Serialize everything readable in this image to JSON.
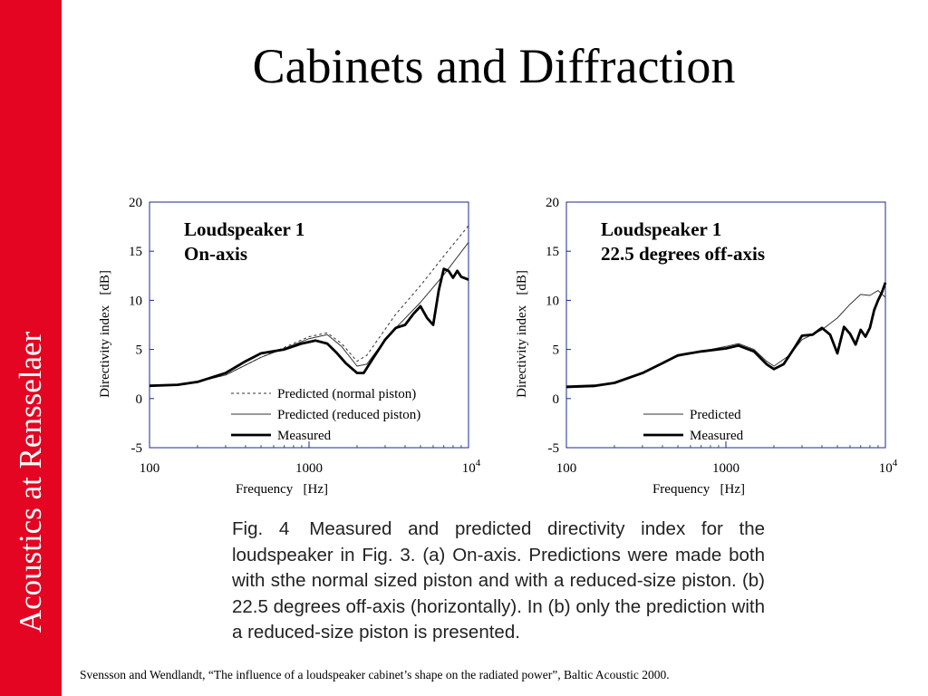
{
  "sidebar": {
    "text": "Acoustics at Rensselaer"
  },
  "slide": {
    "title": "Cabinets and Diffraction"
  },
  "caption": {
    "label": "Fig. 4",
    "text": "Measured and predicted directivity index for the loudspeaker in Fig. 3. (a) On-axis. Predictions were made both with sthe normal sized piston and with a reduced-size piston. (b) 22.5 degrees off-axis (horizontally). In (b) only the prediction with a reduced-size piston is presented."
  },
  "footer": {
    "citation": "Svensson and Wendlandt, “The influence of a loudspeaker cabinet’s shape on the radiated power”, Baltic Acoustic 2000."
  },
  "chart_data": [
    {
      "type": "line",
      "title": "Loudspeaker 1",
      "subtitle": "On-axis",
      "xlabel": "Frequency   [Hz]",
      "ylabel": "Directivity index   [dB]",
      "xscale": "log",
      "xlim": [
        100,
        10000
      ],
      "ylim": [
        -5,
        20
      ],
      "xticks": [
        {
          "label": "100",
          "value": 100
        },
        {
          "label": "1000",
          "value": 1000
        },
        {
          "label": "10",
          "sup": "4",
          "value": 10000
        }
      ],
      "yticks": [
        "-5",
        "0",
        "5",
        "10",
        "15",
        "20"
      ],
      "legend_position": "bottom-right",
      "series": [
        {
          "name": "Predicted (normal piston)",
          "style": "dashed",
          "x": [
            100,
            150,
            200,
            300,
            500,
            700,
            1000,
            1300,
            1600,
            2000,
            2300,
            2700,
            3500,
            5000,
            7000,
            10000
          ],
          "y": [
            1.3,
            1.4,
            1.7,
            2.4,
            4.2,
            5.2,
            6.3,
            6.7,
            5.6,
            3.8,
            4.4,
            6.0,
            8.6,
            11.5,
            14.5,
            17.6
          ]
        },
        {
          "name": "Predicted (reduced piston)",
          "style": "thin",
          "x": [
            100,
            150,
            200,
            300,
            500,
            700,
            1000,
            1300,
            1600,
            2000,
            2300,
            2700,
            3500,
            5000,
            7000,
            10000
          ],
          "y": [
            1.3,
            1.4,
            1.7,
            2.4,
            4.2,
            5.1,
            6.1,
            6.5,
            5.3,
            3.3,
            3.5,
            5.0,
            7.2,
            9.8,
            12.6,
            15.9
          ]
        },
        {
          "name": "Measured",
          "style": "thick",
          "x": [
            100,
            150,
            200,
            300,
            400,
            500,
            700,
            900,
            1100,
            1300,
            1500,
            1700,
            2000,
            2200,
            2500,
            3000,
            3500,
            4000,
            4500,
            5000,
            5500,
            6000,
            6500,
            7000,
            7500,
            8000,
            8500,
            9000,
            10000
          ],
          "y": [
            1.3,
            1.4,
            1.7,
            2.6,
            3.8,
            4.6,
            5.0,
            5.6,
            5.9,
            5.6,
            4.6,
            3.6,
            2.6,
            2.6,
            4.0,
            6.0,
            7.2,
            7.5,
            8.6,
            9.4,
            8.2,
            7.5,
            11.0,
            13.2,
            13.0,
            12.3,
            13.0,
            12.4,
            12.1
          ]
        }
      ]
    },
    {
      "type": "line",
      "title": "Loudspeaker 1",
      "subtitle": "22.5 degrees off-axis",
      "xlabel": "Frequency   [Hz]",
      "ylabel": "Directivity index   [dB]",
      "xscale": "log",
      "xlim": [
        100,
        10000
      ],
      "ylim": [
        -5,
        20
      ],
      "xticks": [
        {
          "label": "100",
          "value": 100
        },
        {
          "label": "1000",
          "value": 1000
        },
        {
          "label": "10",
          "sup": "4",
          "value": 10000
        }
      ],
      "yticks": [
        "-5",
        "0",
        "5",
        "10",
        "15",
        "20"
      ],
      "legend_position": "bottom-right",
      "series": [
        {
          "name": "Predicted",
          "style": "thin",
          "x": [
            100,
            150,
            200,
            300,
            400,
            500,
            700,
            1000,
            1200,
            1500,
            1800,
            2000,
            2500,
            3000,
            4000,
            5000,
            6000,
            7000,
            8000,
            9000,
            10000
          ],
          "y": [
            1.1,
            1.2,
            1.6,
            2.6,
            3.6,
            4.3,
            4.8,
            5.3,
            5.6,
            5.0,
            3.8,
            3.3,
            4.4,
            6.0,
            7.0,
            8.2,
            9.6,
            10.6,
            10.5,
            11.0,
            10.3
          ]
        },
        {
          "name": "Measured",
          "style": "thick",
          "x": [
            100,
            150,
            200,
            300,
            400,
            500,
            700,
            1000,
            1200,
            1500,
            1800,
            2000,
            2300,
            2700,
            3000,
            3500,
            4000,
            4500,
            5000,
            5500,
            6000,
            6500,
            7000,
            7500,
            8000,
            8500,
            9000,
            9500,
            10000
          ],
          "y": [
            1.2,
            1.3,
            1.6,
            2.6,
            3.6,
            4.4,
            4.8,
            5.1,
            5.4,
            4.8,
            3.5,
            3.0,
            3.5,
            5.2,
            6.4,
            6.5,
            7.2,
            6.5,
            4.6,
            7.3,
            6.6,
            5.5,
            7.0,
            6.3,
            7.2,
            9.0,
            10.0,
            10.8,
            11.8
          ]
        }
      ]
    }
  ]
}
